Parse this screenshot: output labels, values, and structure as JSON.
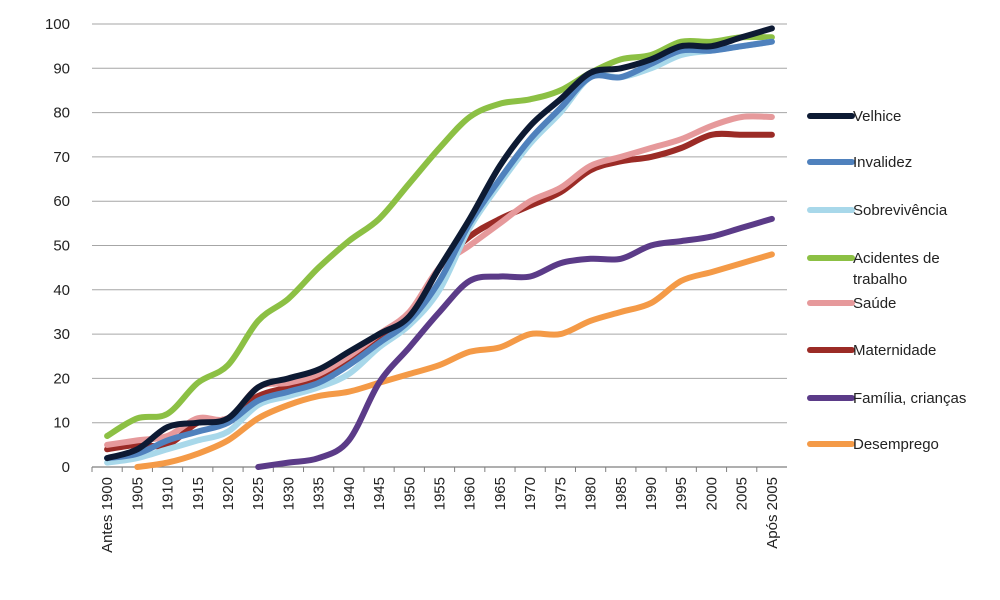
{
  "chart_data": {
    "type": "line",
    "title": "",
    "xlabel": "",
    "ylabel": "",
    "ylim": [
      0,
      100
    ],
    "yticks": [
      0,
      10,
      20,
      30,
      40,
      50,
      60,
      70,
      80,
      90,
      100
    ],
    "grid": true,
    "legend_position": "right",
    "categories": [
      "Antes 1900",
      "1905",
      "1910",
      "1915",
      "1920",
      "1925",
      "1930",
      "1935",
      "1940",
      "1945",
      "1950",
      "1955",
      "1960",
      "1965",
      "1970",
      "1975",
      "1980",
      "1985",
      "1990",
      "1995",
      "2000",
      "2005",
      "Após 2005"
    ],
    "series": [
      {
        "name": "Velhice",
        "color": "#0d1a33",
        "values": [
          2,
          4,
          9,
          10,
          11,
          18,
          20,
          22,
          26,
          30,
          34,
          45,
          56,
          68,
          77,
          83,
          89,
          90,
          92,
          95,
          95,
          97,
          99
        ]
      },
      {
        "name": "Invalidez",
        "color": "#4f81bd",
        "values": [
          2,
          3,
          6,
          8,
          10,
          15,
          17,
          19,
          23,
          28,
          33,
          42,
          55,
          65,
          74,
          81,
          88,
          88,
          91,
          94,
          94,
          95,
          96
        ]
      },
      {
        "name": "Sobrevivência",
        "color": "#a8d8ea",
        "values": [
          1,
          2,
          4,
          6,
          8,
          14,
          16,
          18,
          21,
          27,
          32,
          40,
          54,
          64,
          73,
          80,
          88,
          88,
          90,
          93,
          94,
          95,
          96
        ]
      },
      {
        "name": "Acidentes de trabalho",
        "color": "#8cc044",
        "values": [
          7,
          11,
          12,
          19,
          23,
          33,
          38,
          45,
          51,
          56,
          64,
          72,
          79,
          82,
          83,
          85,
          89,
          92,
          93,
          96,
          96,
          97,
          97
        ]
      },
      {
        "name": "Saúde",
        "color": "#e6999b",
        "values": [
          5,
          6,
          7,
          11,
          11,
          18,
          19,
          21,
          25,
          30,
          35,
          45,
          50,
          55,
          60,
          63,
          68,
          70,
          72,
          74,
          77,
          79,
          79
        ]
      },
      {
        "name": "Maternidade",
        "color": "#9b2b26",
        "values": [
          4,
          5,
          5,
          10,
          11,
          16,
          18,
          20,
          24,
          29,
          33,
          45,
          52,
          56,
          59,
          62,
          67,
          69,
          70,
          72,
          75,
          75,
          75
        ]
      },
      {
        "name": "Família, crianças",
        "color": "#5b3b88",
        "values": [
          null,
          null,
          null,
          null,
          null,
          0,
          1,
          2,
          6,
          19,
          27,
          35,
          42,
          43,
          43,
          46,
          47,
          47,
          50,
          51,
          52,
          54,
          56
        ]
      },
      {
        "name": "Desemprego",
        "color": "#f49a47",
        "values": [
          null,
          0,
          1,
          3,
          6,
          11,
          14,
          16,
          17,
          19,
          21,
          23,
          26,
          27,
          30,
          30,
          33,
          35,
          37,
          42,
          44,
          46,
          48
        ]
      }
    ]
  }
}
